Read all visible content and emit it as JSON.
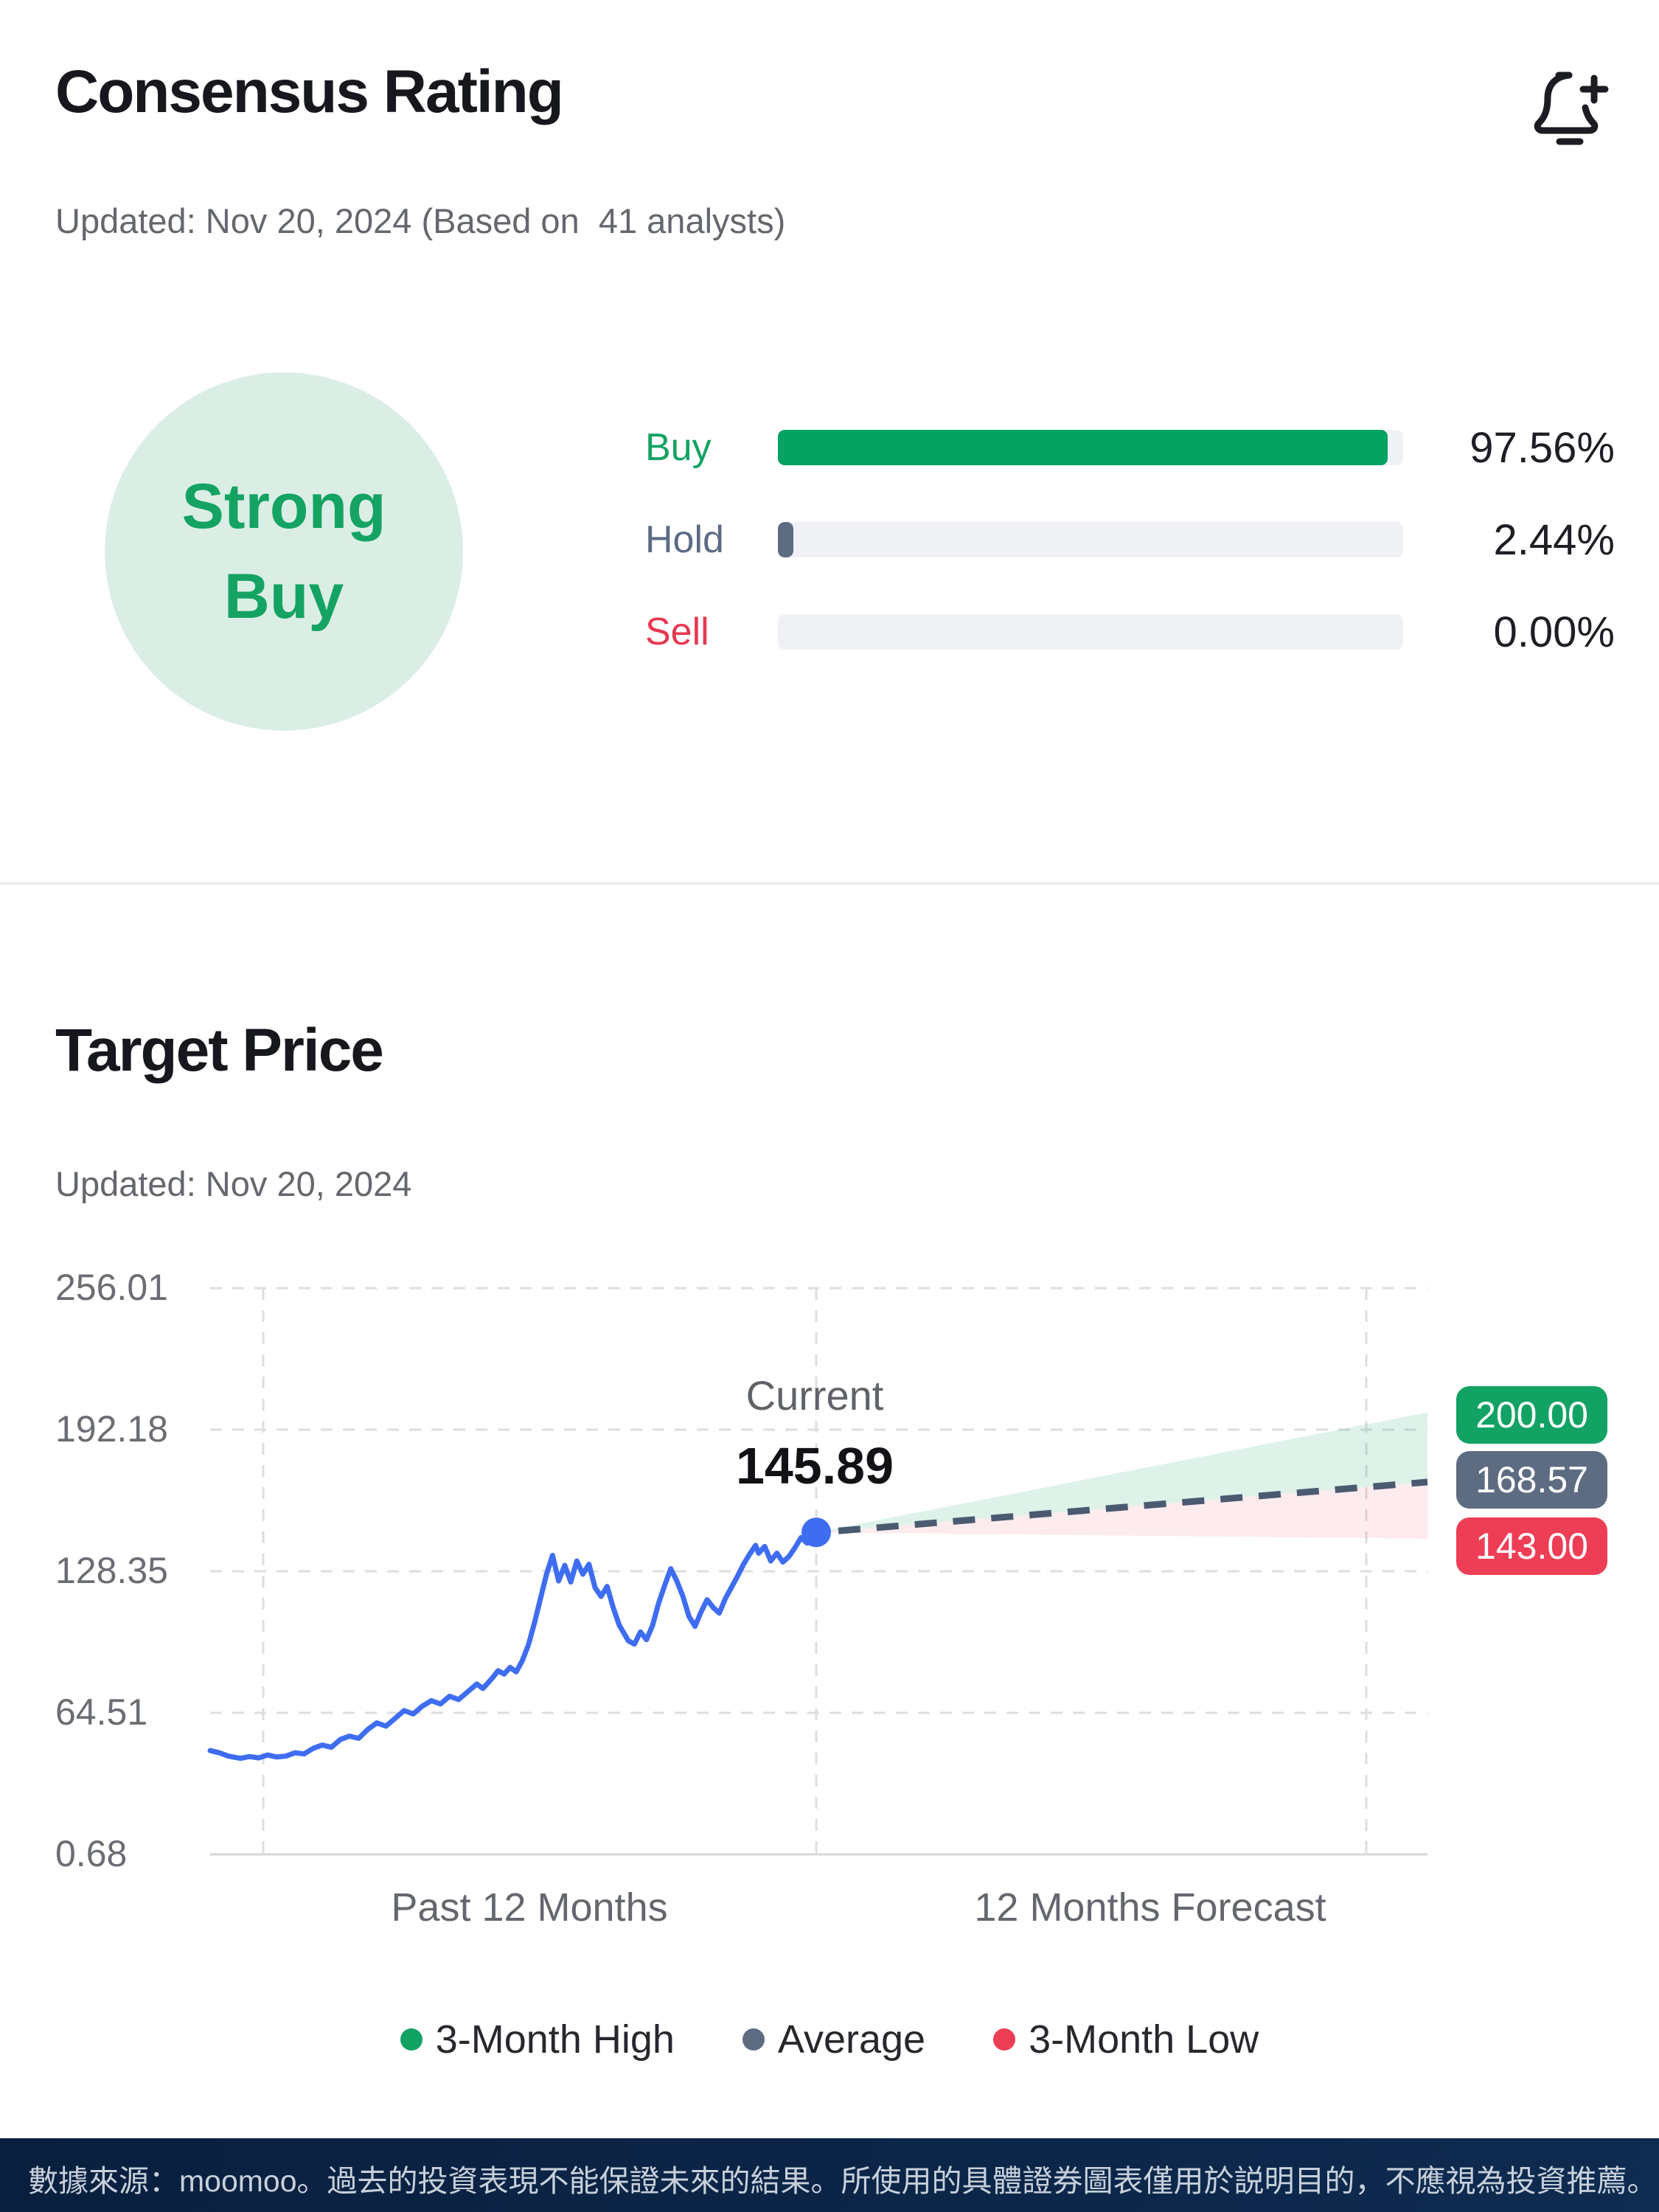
{
  "consensus": {
    "title": "Consensus Rating",
    "updated": "Updated: Nov 20, 2024 (Based on  41 analysts)",
    "badge": {
      "line1": "Strong",
      "line2": "Buy"
    },
    "rows": [
      {
        "label": "Buy",
        "percent": "97.56%",
        "value": 97.56,
        "bar_color": "#04a263",
        "label_color": "#14a363"
      },
      {
        "label": "Hold",
        "percent": "2.44%",
        "value": 2.44,
        "bar_color": "#5e6c82",
        "label_color": "#5c6b85"
      },
      {
        "label": "Sell",
        "percent": "0.00%",
        "value": 0.0,
        "bar_color": "#ee3e55",
        "label_color": "#e8374f"
      }
    ],
    "bell_icon": "bell-plus-icon"
  },
  "target": {
    "title": "Target Price",
    "updated": "Updated: Nov 20, 2024"
  },
  "chart_data": {
    "type": "line",
    "title": "Target Price",
    "ylim": [
      0.68,
      256.01
    ],
    "y_ticks": [
      256.01,
      192.18,
      128.35,
      64.51,
      0.68
    ],
    "y_tick_labels": [
      "256.01",
      "192.18",
      "128.35",
      "64.51",
      "0.68"
    ],
    "x_section_labels": [
      "Past 12 Months",
      "12 Months Forecast"
    ],
    "grid": true,
    "line_color": "#3f6df2",
    "grid_color": "#dddee1",
    "current": {
      "label": "Current",
      "value": 145.89,
      "display": "145.89"
    },
    "forecast": {
      "high": 200.0,
      "high_display": "200.00",
      "high_color": "#12a263",
      "average": 168.57,
      "average_display": "168.57",
      "average_color": "#5e6c82",
      "low": 143.0,
      "low_display": "143.00",
      "low_color": "#ee3e55",
      "fan_high_fill": "rgba(18,162,99,0.14)",
      "fan_low_fill": "rgba(238,62,85,0.10)",
      "average_line_color": "#4a5a70"
    },
    "legend": [
      {
        "label": "3-Month High",
        "color": "#12a263"
      },
      {
        "label": "Average",
        "color": "#5e6c82"
      },
      {
        "label": "3-Month Low",
        "color": "#ee3e55"
      }
    ],
    "history": [
      [
        0.0,
        47.5
      ],
      [
        0.015,
        46.5
      ],
      [
        0.03,
        45.0
      ],
      [
        0.05,
        44.0
      ],
      [
        0.065,
        44.8
      ],
      [
        0.08,
        44.2
      ],
      [
        0.095,
        45.5
      ],
      [
        0.11,
        44.6
      ],
      [
        0.125,
        45.0
      ],
      [
        0.14,
        46.5
      ],
      [
        0.155,
        46.0
      ],
      [
        0.17,
        48.5
      ],
      [
        0.185,
        50.0
      ],
      [
        0.2,
        49.0
      ],
      [
        0.215,
        52.5
      ],
      [
        0.23,
        54.0
      ],
      [
        0.245,
        53.0
      ],
      [
        0.26,
        57.0
      ],
      [
        0.275,
        60.0
      ],
      [
        0.29,
        58.5
      ],
      [
        0.305,
        62.0
      ],
      [
        0.32,
        65.5
      ],
      [
        0.335,
        64.0
      ],
      [
        0.35,
        67.5
      ],
      [
        0.365,
        70.0
      ],
      [
        0.38,
        68.5
      ],
      [
        0.395,
        72.0
      ],
      [
        0.41,
        70.5
      ],
      [
        0.425,
        74.0
      ],
      [
        0.44,
        77.5
      ],
      [
        0.45,
        75.5
      ],
      [
        0.465,
        80.0
      ],
      [
        0.475,
        83.5
      ],
      [
        0.485,
        82.0
      ],
      [
        0.495,
        85.0
      ],
      [
        0.505,
        83.0
      ],
      [
        0.515,
        88.0
      ],
      [
        0.525,
        95.0
      ],
      [
        0.535,
        105.0
      ],
      [
        0.545,
        116.0
      ],
      [
        0.555,
        127.0
      ],
      [
        0.565,
        135.5
      ],
      [
        0.575,
        124.0
      ],
      [
        0.585,
        131.0
      ],
      [
        0.595,
        123.5
      ],
      [
        0.605,
        133.0
      ],
      [
        0.615,
        127.0
      ],
      [
        0.625,
        131.5
      ],
      [
        0.635,
        121.0
      ],
      [
        0.645,
        117.0
      ],
      [
        0.655,
        121.5
      ],
      [
        0.665,
        112.0
      ],
      [
        0.675,
        104.0
      ],
      [
        0.69,
        97.0
      ],
      [
        0.7,
        95.5
      ],
      [
        0.71,
        101.0
      ],
      [
        0.72,
        97.5
      ],
      [
        0.73,
        104.0
      ],
      [
        0.74,
        114.0
      ],
      [
        0.75,
        122.0
      ],
      [
        0.76,
        129.5
      ],
      [
        0.77,
        124.0
      ],
      [
        0.78,
        117.0
      ],
      [
        0.79,
        108.0
      ],
      [
        0.8,
        103.5
      ],
      [
        0.81,
        110.0
      ],
      [
        0.82,
        115.5
      ],
      [
        0.83,
        112.0
      ],
      [
        0.84,
        109.5
      ],
      [
        0.85,
        116.0
      ],
      [
        0.86,
        121.0
      ],
      [
        0.87,
        126.0
      ],
      [
        0.88,
        131.5
      ],
      [
        0.89,
        136.0
      ],
      [
        0.9,
        140.0
      ],
      [
        0.905,
        136.5
      ],
      [
        0.915,
        139.5
      ],
      [
        0.925,
        133.0
      ],
      [
        0.935,
        136.5
      ],
      [
        0.945,
        132.5
      ],
      [
        0.955,
        135.0
      ],
      [
        0.965,
        139.0
      ],
      [
        0.975,
        143.5
      ],
      [
        0.985,
        141.0
      ],
      [
        1.0,
        145.89
      ]
    ]
  },
  "footer": {
    "text": "數據來源：moomoo。過去的投資表現不能保證未來的結果。所使用的具體證券圖表僅用於説明目的，不應視為投資推薦。"
  }
}
